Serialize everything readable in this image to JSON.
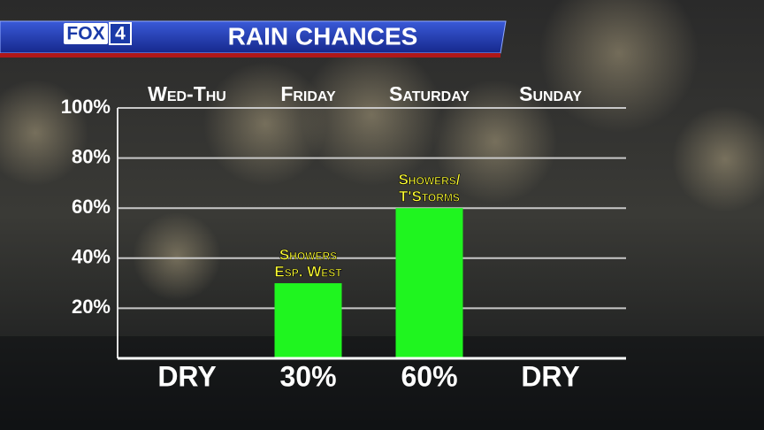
{
  "header": {
    "logo_name": "FOX",
    "logo_number": "4"
  },
  "chart_data": {
    "type": "bar",
    "title": "RAIN CHANCES",
    "categories": [
      "Wed-Thu",
      "Friday",
      "Saturday",
      "Sunday"
    ],
    "values": [
      0,
      30,
      60,
      0
    ],
    "value_labels": [
      "DRY",
      "30%",
      "60%",
      "DRY"
    ],
    "bar_annotations": [
      null,
      [
        "Showers",
        "Esp. West"
      ],
      [
        "Showers/",
        "T'Storms"
      ],
      null
    ],
    "color": "#1ff51f",
    "ylim": [
      0,
      100
    ],
    "yticks": [
      {
        "value": 20,
        "label": "20%"
      },
      {
        "value": 40,
        "label": "40%"
      },
      {
        "value": 60,
        "label": "60%"
      },
      {
        "value": 80,
        "label": "80%"
      },
      {
        "value": 100,
        "label": "100%"
      }
    ],
    "grid": true
  }
}
